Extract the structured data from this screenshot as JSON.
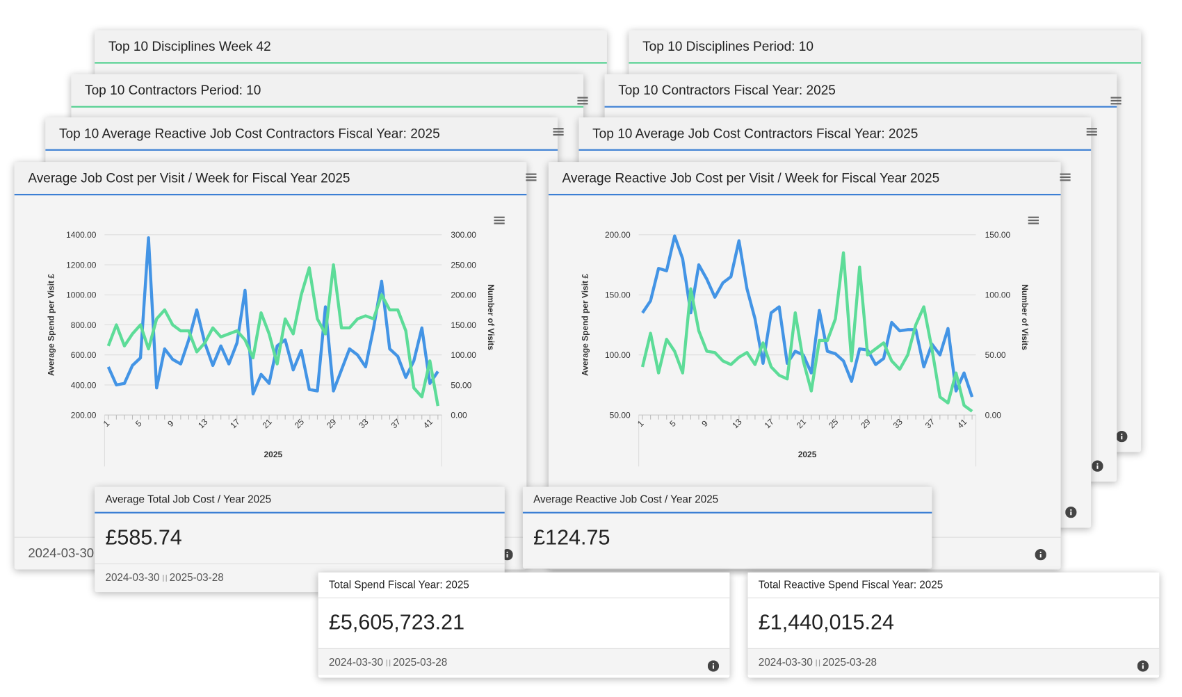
{
  "cards": [
    {
      "title": "Top 10 Disciplines Week 42"
    },
    {
      "title": "Top 10 Disciplines Period: 10"
    },
    {
      "title": "Top 10 Contractors Period: 10"
    },
    {
      "title": "Top 10 Contractors Fiscal Year: 2025"
    },
    {
      "title": "Top 10 Average Reactive Job Cost Contractors Fiscal Year: 2025"
    },
    {
      "title": "Top 10 Average Job Cost Contractors Fiscal Year: 2025"
    }
  ],
  "chart_cards": [
    {
      "title": "Average Job Cost per Visit / Week for Fiscal Year 2025",
      "footer": "2024-03-30"
    },
    {
      "title": "Average Reactive Job Cost per Visit / Week for Fiscal Year 2025"
    }
  ],
  "chart_data": [
    {
      "type": "line",
      "x_label": "2025",
      "y_label": "Average Spend per Visit £",
      "y2_label": "Number of Visits",
      "grid": true,
      "categories": [
        "1",
        null,
        null,
        null,
        "5",
        null,
        null,
        null,
        "9",
        null,
        null,
        null,
        "13",
        null,
        null,
        null,
        "17",
        null,
        null,
        null,
        "21",
        null,
        null,
        null,
        "25",
        null,
        null,
        null,
        "29",
        null,
        null,
        null,
        "33",
        null,
        null,
        null,
        "37",
        null,
        null,
        null,
        "41",
        null
      ],
      "ylim": [
        200,
        1400
      ],
      "yticks": [
        {
          "value": 200,
          "label": "200.00"
        },
        {
          "value": 400,
          "label": "400.00"
        },
        {
          "value": 600,
          "label": "600.00"
        },
        {
          "value": 800,
          "label": "800.00"
        },
        {
          "value": 1000,
          "label": "1000.00"
        },
        {
          "value": 1200,
          "label": "1200.00"
        },
        {
          "value": 1400,
          "label": "1400.00"
        }
      ],
      "y2lim": [
        0,
        300
      ],
      "y2ticks": [
        {
          "value": 0,
          "label": "0.00"
        },
        {
          "value": 50,
          "label": "50.00"
        },
        {
          "value": 100,
          "label": "100.00"
        },
        {
          "value": 150,
          "label": "150.00"
        },
        {
          "value": 200,
          "label": "200.00"
        },
        {
          "value": 250,
          "label": "250.00"
        },
        {
          "value": 300,
          "label": "300.00"
        }
      ],
      "series": [
        {
          "color": "#4394e5",
          "values": [
            520,
            400,
            410,
            530,
            580,
            1380,
            380,
            640,
            570,
            540,
            700,
            900,
            680,
            530,
            660,
            540,
            680,
            1030,
            340,
            470,
            410,
            660,
            700,
            500,
            630,
            370,
            360,
            920,
            360,
            500,
            640,
            600,
            520,
            780,
            1090,
            640,
            590,
            450,
            560,
            780,
            410,
            490
          ]
        },
        {
          "color": "#5ddc98",
          "axis": "y2",
          "values": [
            115,
            150,
            115,
            135,
            150,
            110,
            160,
            175,
            150,
            140,
            140,
            105,
            120,
            145,
            130,
            135,
            140,
            125,
            95,
            170,
            135,
            85,
            160,
            135,
            200,
            245,
            160,
            135,
            250,
            145,
            145,
            160,
            165,
            160,
            200,
            175,
            175,
            140,
            45,
            30,
            90,
            15
          ]
        }
      ]
    },
    {
      "type": "line",
      "x_label": "2025",
      "y_label": "Average Spend per Visit £",
      "y2_label": "Number of Visits",
      "grid": true,
      "categories": [
        "1",
        null,
        null,
        null,
        "5",
        null,
        null,
        null,
        "9",
        null,
        null,
        null,
        "13",
        null,
        null,
        null,
        "17",
        null,
        null,
        null,
        "21",
        null,
        null,
        null,
        "25",
        null,
        null,
        null,
        "29",
        null,
        null,
        null,
        "33",
        null,
        null,
        null,
        "37",
        null,
        null,
        null,
        "41",
        null
      ],
      "ylim": [
        50,
        200
      ],
      "yticks": [
        {
          "value": 50,
          "label": "50.00"
        },
        {
          "value": 100,
          "label": "100.00"
        },
        {
          "value": 150,
          "label": "150.00"
        },
        {
          "value": 200,
          "label": "200.00"
        }
      ],
      "y2lim": [
        0,
        150
      ],
      "y2ticks": [
        {
          "value": 0,
          "label": "0.00"
        },
        {
          "value": 50,
          "label": "50.00"
        },
        {
          "value": 100,
          "label": "100.00"
        },
        {
          "value": 150,
          "label": "150.00"
        }
      ],
      "series": [
        {
          "color": "#4394e5",
          "values": [
            135,
            145,
            172,
            170,
            199,
            180,
            135,
            175,
            163,
            148,
            160,
            165,
            195,
            155,
            130,
            93,
            135,
            140,
            93,
            103,
            100,
            85,
            137,
            103,
            101,
            95,
            78,
            105,
            104,
            92,
            97,
            127,
            120,
            121,
            121,
            90,
            109,
            100,
            122,
            70,
            85,
            65
          ]
        },
        {
          "color": "#5ddc98",
          "axis": "y2",
          "values": [
            40,
            68,
            35,
            63,
            53,
            35,
            105,
            70,
            53,
            52,
            45,
            42,
            48,
            52,
            42,
            60,
            40,
            33,
            30,
            85,
            45,
            20,
            62,
            62,
            80,
            135,
            45,
            123,
            50,
            55,
            60,
            45,
            38,
            50,
            75,
            90,
            55,
            15,
            10,
            35,
            8,
            3
          ]
        }
      ]
    }
  ],
  "stats": [
    {
      "title": "Average Total Job Cost / Year 2025",
      "value": "£585.74",
      "start": "2024-03-30",
      "end": "2025-03-28"
    },
    {
      "title": "Average Reactive Job Cost / Year 2025",
      "value": "£124.75"
    },
    {
      "title": "Total Spend Fiscal Year: 2025",
      "value": "£5,605,723.21",
      "start": "2024-03-30",
      "end": "2025-03-28"
    },
    {
      "title": "Total Reactive Spend Fiscal Year: 2025",
      "value": "£1,440,015.24",
      "start": "2024-03-30",
      "end": "2025-03-28"
    }
  ]
}
